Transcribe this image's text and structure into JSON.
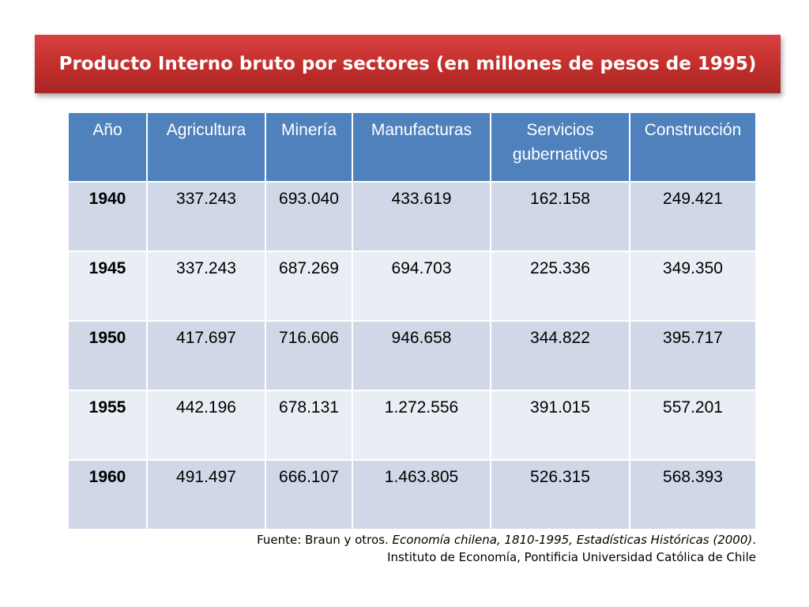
{
  "title": "Producto Interno bruto por sectores (en millones de pesos de 1995)",
  "table": {
    "headers": [
      "Año",
      "Agricultura",
      "Minería",
      "Manufacturas",
      "Servicios gubernativos",
      "Construcción"
    ],
    "rows": [
      [
        "1940",
        "337.243",
        "693.040",
        "433.619",
        "162.158",
        "249.421"
      ],
      [
        "1945",
        "337.243",
        "687.269",
        "694.703",
        "225.336",
        "349.350"
      ],
      [
        "1950",
        "417.697",
        "716.606",
        "946.658",
        "344.822",
        "395.717"
      ],
      [
        "1955",
        "442.196",
        "678.131",
        "1.272.556",
        "391.015",
        "557.201"
      ],
      [
        "1960",
        "491.497",
        "666.107",
        "1.463.805",
        "526.315",
        "568.393"
      ]
    ]
  },
  "source": {
    "prefix": "Fuente: Braun y otros. ",
    "work": "Economía chilena, 1810-1995, Estadísticas Históricas (2000)",
    "suffix": ".",
    "institution": "Instituto de Economía, Pontificia Universidad Católica de Chile"
  },
  "colors": {
    "banner": "#c12e2c",
    "header": "#4f81bd",
    "row_dark": "#d0d8e8",
    "row_light": "#e9edf4"
  }
}
